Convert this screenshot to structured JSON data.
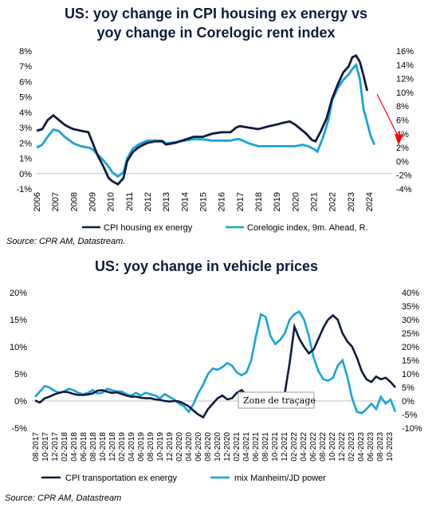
{
  "colors": {
    "dark": "#0d1b3e",
    "light": "#16a3dc",
    "arrow": "#ff0000"
  },
  "chart_data": [
    {
      "type": "line",
      "title_line1": "US: yoy change in CPI housing ex energy vs",
      "title_line2": "yoy change in Corelogic rent index",
      "source": "Source: CPR AM, Datastream.",
      "y_left": {
        "min": -1,
        "max": 8,
        "ticks": [
          "8%",
          "7%",
          "6%",
          "5%",
          "4%",
          "3%",
          "2%",
          "1%",
          "0%",
          "-1%"
        ]
      },
      "y_right": {
        "min": -4,
        "max": 16,
        "ticks": [
          "16%",
          "14%",
          "12%",
          "10%",
          "8%",
          "6%",
          "4%",
          "2%",
          "0%",
          "-2%",
          "-4%"
        ]
      },
      "x_ticks": [
        "2006",
        "2007",
        "2008",
        "2009",
        "2010",
        "2011",
        "2012",
        "2013",
        "2014",
        "2015",
        "2016",
        "2017",
        "2018",
        "2019",
        "2020",
        "2021",
        "2022",
        "2023",
        "2024"
      ],
      "series": [
        {
          "name": "CPI housing ex energy",
          "axis": "left",
          "x": [
            2006.0,
            2006.3,
            2006.6,
            2006.9,
            2007.2,
            2007.5,
            2007.8,
            2008.0,
            2008.4,
            2008.8,
            2009.0,
            2009.3,
            2009.6,
            2009.9,
            2010.1,
            2010.4,
            2010.7,
            2010.9,
            2011.2,
            2011.5,
            2011.8,
            2012.0,
            2012.4,
            2012.8,
            2013.0,
            2013.5,
            2014.0,
            2014.5,
            2015.0,
            2015.5,
            2016.0,
            2016.5,
            2016.8,
            2017.0,
            2017.5,
            2018.0,
            2018.3,
            2018.6,
            2019.0,
            2019.3,
            2019.7,
            2020.0,
            2020.3,
            2020.6,
            2020.9,
            2021.1,
            2021.4,
            2021.7,
            2022.0,
            2022.3,
            2022.6,
            2022.9,
            2023.1,
            2023.3,
            2023.5,
            2023.7,
            2023.9
          ],
          "values": [
            2.8,
            2.9,
            3.5,
            3.8,
            3.5,
            3.2,
            3.0,
            2.9,
            2.8,
            2.7,
            2.1,
            1.2,
            0.5,
            -0.3,
            -0.5,
            -0.7,
            -0.3,
            0.8,
            1.4,
            1.7,
            1.9,
            2.0,
            2.1,
            2.1,
            1.9,
            2.0,
            2.2,
            2.4,
            2.4,
            2.6,
            2.7,
            2.7,
            3.0,
            3.1,
            3.0,
            2.9,
            3.0,
            3.1,
            3.2,
            3.3,
            3.4,
            3.2,
            2.9,
            2.6,
            2.2,
            2.1,
            2.8,
            3.6,
            4.9,
            5.8,
            6.6,
            7.0,
            7.6,
            7.7,
            7.3,
            6.4,
            5.4
          ]
        },
        {
          "name": "Corelogic index, 9m. Ahead, R.",
          "axis": "right",
          "x": [
            2006.0,
            2006.3,
            2006.6,
            2006.9,
            2007.2,
            2007.5,
            2007.8,
            2008.0,
            2008.4,
            2008.8,
            2009.0,
            2009.3,
            2009.6,
            2009.9,
            2010.1,
            2010.4,
            2010.7,
            2010.9,
            2011.2,
            2011.5,
            2011.8,
            2012.0,
            2012.4,
            2012.8,
            2013.0,
            2013.5,
            2014.0,
            2014.5,
            2015.0,
            2015.5,
            2016.0,
            2016.5,
            2016.8,
            2017.0,
            2017.5,
            2018.0,
            2018.5,
            2019.0,
            2019.5,
            2020.0,
            2020.4,
            2020.7,
            2021.0,
            2021.2,
            2021.5,
            2021.8,
            2022.0,
            2022.3,
            2022.6,
            2022.9,
            2023.1,
            2023.3,
            2023.5,
            2023.7,
            2023.9,
            2024.1,
            2024.3
          ],
          "values": [
            2.0,
            2.4,
            3.6,
            4.6,
            4.4,
            3.6,
            3.0,
            2.6,
            2.2,
            2.0,
            1.8,
            1.0,
            0.2,
            -0.8,
            -1.6,
            -2.2,
            -1.6,
            0.4,
            1.8,
            2.4,
            2.8,
            3.0,
            3.0,
            3.0,
            2.6,
            2.8,
            3.0,
            3.2,
            3.2,
            3.0,
            3.0,
            3.0,
            3.2,
            3.2,
            2.6,
            2.2,
            2.2,
            2.2,
            2.2,
            2.2,
            2.4,
            2.2,
            1.8,
            1.4,
            3.4,
            6.0,
            8.8,
            10.6,
            11.8,
            12.6,
            13.4,
            14.0,
            12.0,
            7.6,
            5.6,
            3.6,
            2.4
          ]
        }
      ]
    },
    {
      "type": "line",
      "title": "US: yoy change in vehicle prices",
      "source": "Source: CPR AM, Datastream",
      "tooltip": "Zone de traçage",
      "y_left": {
        "min": -5,
        "max": 20,
        "ticks": [
          "20%",
          "15%",
          "10%",
          "5%",
          "0%",
          "-5%"
        ]
      },
      "y_right": {
        "min": -10,
        "max": 40,
        "ticks": [
          "40%",
          "35%",
          "30%",
          "25%",
          "20%",
          "15%",
          "10%",
          "5%",
          "0%",
          "-5%",
          "-10%"
        ]
      },
      "x_ticks": [
        "08-2017",
        "10-2017",
        "12-2017",
        "02-2018",
        "04-2018",
        "06-2018",
        "08-2018",
        "10-2018",
        "12-2018",
        "02-2019",
        "04-2019",
        "06-2019",
        "08-2019",
        "10-2019",
        "12-2019",
        "02-2020",
        "04-2020",
        "06-2020",
        "08-2020",
        "10-2020",
        "12-2020",
        "02-2021",
        "04-2021",
        "06-2021",
        "08-2021",
        "10-2021",
        "12-2021",
        "02-2022",
        "04-2022",
        "06-2022",
        "08-2022",
        "10-2022",
        "12-2022",
        "02-2023",
        "04-2023",
        "06-2023",
        "08-2023",
        "10-2023"
      ],
      "series": [
        {
          "name": "CPI transportation ex energy",
          "axis": "left",
          "x": [
            0,
            1,
            2,
            3,
            4,
            5,
            6,
            7,
            8,
            9,
            10,
            11,
            12,
            13,
            14,
            15,
            16,
            17,
            18,
            19,
            20,
            21,
            22,
            23,
            24,
            25,
            26,
            27,
            28,
            29,
            30,
            31,
            32,
            33,
            34,
            35,
            36,
            37,
            38,
            39,
            40,
            41,
            42,
            43,
            44,
            45,
            46,
            47,
            48,
            49,
            50,
            51,
            52,
            53,
            54,
            55,
            56,
            57,
            58,
            59,
            60,
            61,
            62,
            63,
            64,
            65,
            66,
            67,
            68,
            69,
            70,
            71,
            72,
            73,
            74,
            75
          ],
          "values": [
            0.1,
            -0.3,
            0.5,
            0.8,
            1.2,
            1.5,
            1.7,
            1.6,
            1.3,
            1.1,
            1.1,
            1.2,
            1.4,
            1.9,
            2.0,
            1.7,
            1.5,
            1.6,
            1.3,
            1.0,
            0.8,
            0.8,
            0.6,
            0.5,
            0.5,
            0.3,
            0.2,
            0.0,
            -0.1,
            0.0,
            -0.1,
            -0.5,
            -1.0,
            -1.8,
            -2.5,
            -3.0,
            -1.5,
            -0.5,
            0.5,
            1.0,
            0.3,
            0.5,
            1.5,
            2.0,
            1.2,
            0.5,
            -0.5,
            null,
            null,
            null,
            null,
            null,
            1.5,
            7.0,
            13.7,
            11.5,
            10.0,
            8.8,
            9.5,
            11.5,
            13.5,
            15.0,
            15.8,
            15.0,
            12.5,
            11.0,
            10.0,
            8.0,
            5.5,
            4.0,
            3.5,
            4.5,
            4.0,
            4.3,
            3.5,
            2.5
          ]
        },
        {
          "name": "mix Manheim/JD power",
          "axis": "right",
          "x": [
            0,
            1,
            2,
            3,
            4,
            5,
            6,
            7,
            8,
            9,
            10,
            11,
            12,
            13,
            14,
            15,
            16,
            17,
            18,
            19,
            20,
            21,
            22,
            23,
            24,
            25,
            26,
            27,
            28,
            29,
            30,
            31,
            32,
            33,
            34,
            35,
            36,
            37,
            38,
            39,
            40,
            41,
            42,
            43,
            44,
            45,
            46,
            47,
            48,
            49,
            50,
            51,
            52,
            53,
            54,
            55,
            56,
            57,
            58,
            59,
            60,
            61,
            62,
            63,
            64,
            65,
            66,
            67,
            68,
            69,
            70,
            71,
            72,
            73,
            74,
            75
          ],
          "values": [
            1.5,
            3.5,
            5.5,
            5.0,
            3.8,
            3.0,
            3.5,
            4.5,
            4.0,
            3.0,
            2.5,
            3.0,
            4.0,
            2.8,
            3.0,
            4.5,
            4.0,
            3.5,
            3.5,
            2.5,
            2.0,
            3.0,
            2.0,
            3.0,
            2.5,
            2.0,
            1.0,
            2.5,
            1.5,
            0.5,
            -1.0,
            -2.0,
            -4.0,
            -1.0,
            3.0,
            6.0,
            10.0,
            12.0,
            11.5,
            12.5,
            14.0,
            13.0,
            10.5,
            9.5,
            10.5,
            15.0,
            24.0,
            32.0,
            31.0,
            24.0,
            21.0,
            22.5,
            25.0,
            30.0,
            32.0,
            33.0,
            30.0,
            24.0,
            16.0,
            11.0,
            8.0,
            7.5,
            8.5,
            13.0,
            15.0,
            9.0,
            1.0,
            -4.0,
            -4.5,
            -3.0,
            -1.0,
            -3.0,
            1.5,
            -1.0,
            0.5,
            -4.0
          ]
        }
      ]
    }
  ]
}
